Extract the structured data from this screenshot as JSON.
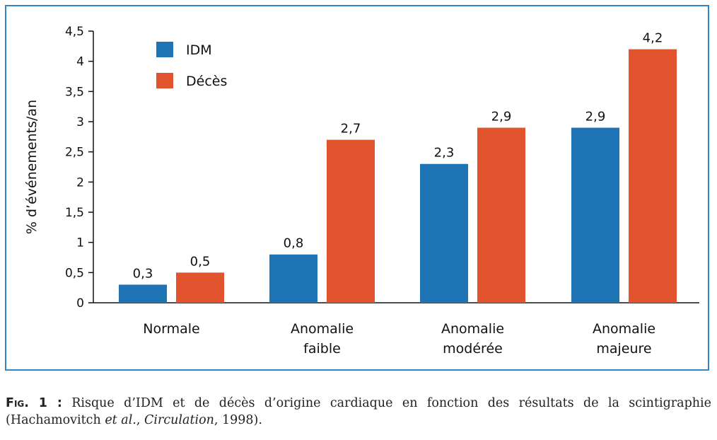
{
  "chart_data": {
    "type": "bar",
    "ylabel": "% d’événements/an",
    "ylim": [
      0,
      4.5
    ],
    "yticks": [
      "0",
      "0,5",
      "1",
      "1,5",
      "2",
      "2,5",
      "3",
      "3,5",
      "4",
      "4,5"
    ],
    "categories": [
      [
        "Normale"
      ],
      [
        "Anomalie",
        "faible"
      ],
      [
        "Anomalie",
        "modérée"
      ],
      [
        "Anomalie",
        "majeure"
      ]
    ],
    "series": [
      {
        "name": "IDM",
        "color": "#1f74b6",
        "values": [
          0.3,
          0.8,
          2.3,
          2.9
        ],
        "labels": [
          "0,3",
          "0,8",
          "2,3",
          "2,9"
        ]
      },
      {
        "name": "Décès",
        "color": "#e2542e",
        "values": [
          0.5,
          2.7,
          2.9,
          4.2
        ],
        "labels": [
          "0,5",
          "2,7",
          "2,9",
          "4,2"
        ]
      }
    ],
    "legend": "top-left"
  },
  "caption": {
    "label": "Fig. 1 :",
    "text": " Risque d’IDM et de décès d’origine cardiaque en fonction des résultats de la scintigraphie (Hachamovitch ",
    "etal": "et al.",
    "comma": ", ",
    "journal": "Circulation",
    "year": ", 1998)."
  }
}
